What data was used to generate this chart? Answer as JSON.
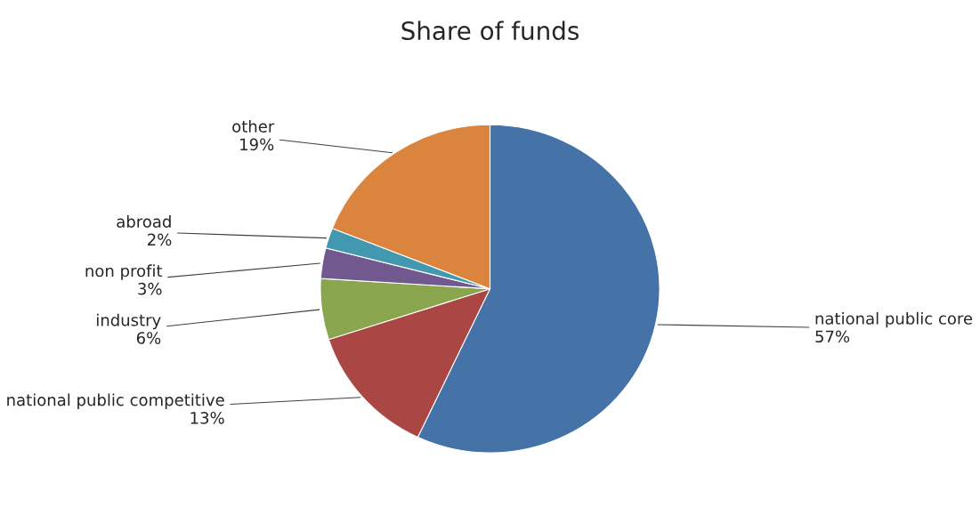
{
  "chart_data": {
    "type": "pie",
    "title": "Share of funds",
    "categories": [
      "national public core",
      "national public competitive",
      "industry",
      "non profit",
      "abroad",
      "other"
    ],
    "values": [
      57,
      13,
      6,
      3,
      2,
      19
    ],
    "value_labels": [
      "57%",
      "13%",
      "6%",
      "3%",
      "2%",
      "19%"
    ],
    "colors": [
      "#4572a7",
      "#aa4643",
      "#89a54e",
      "#71588f",
      "#4198af",
      "#db843d"
    ],
    "legend": false
  }
}
